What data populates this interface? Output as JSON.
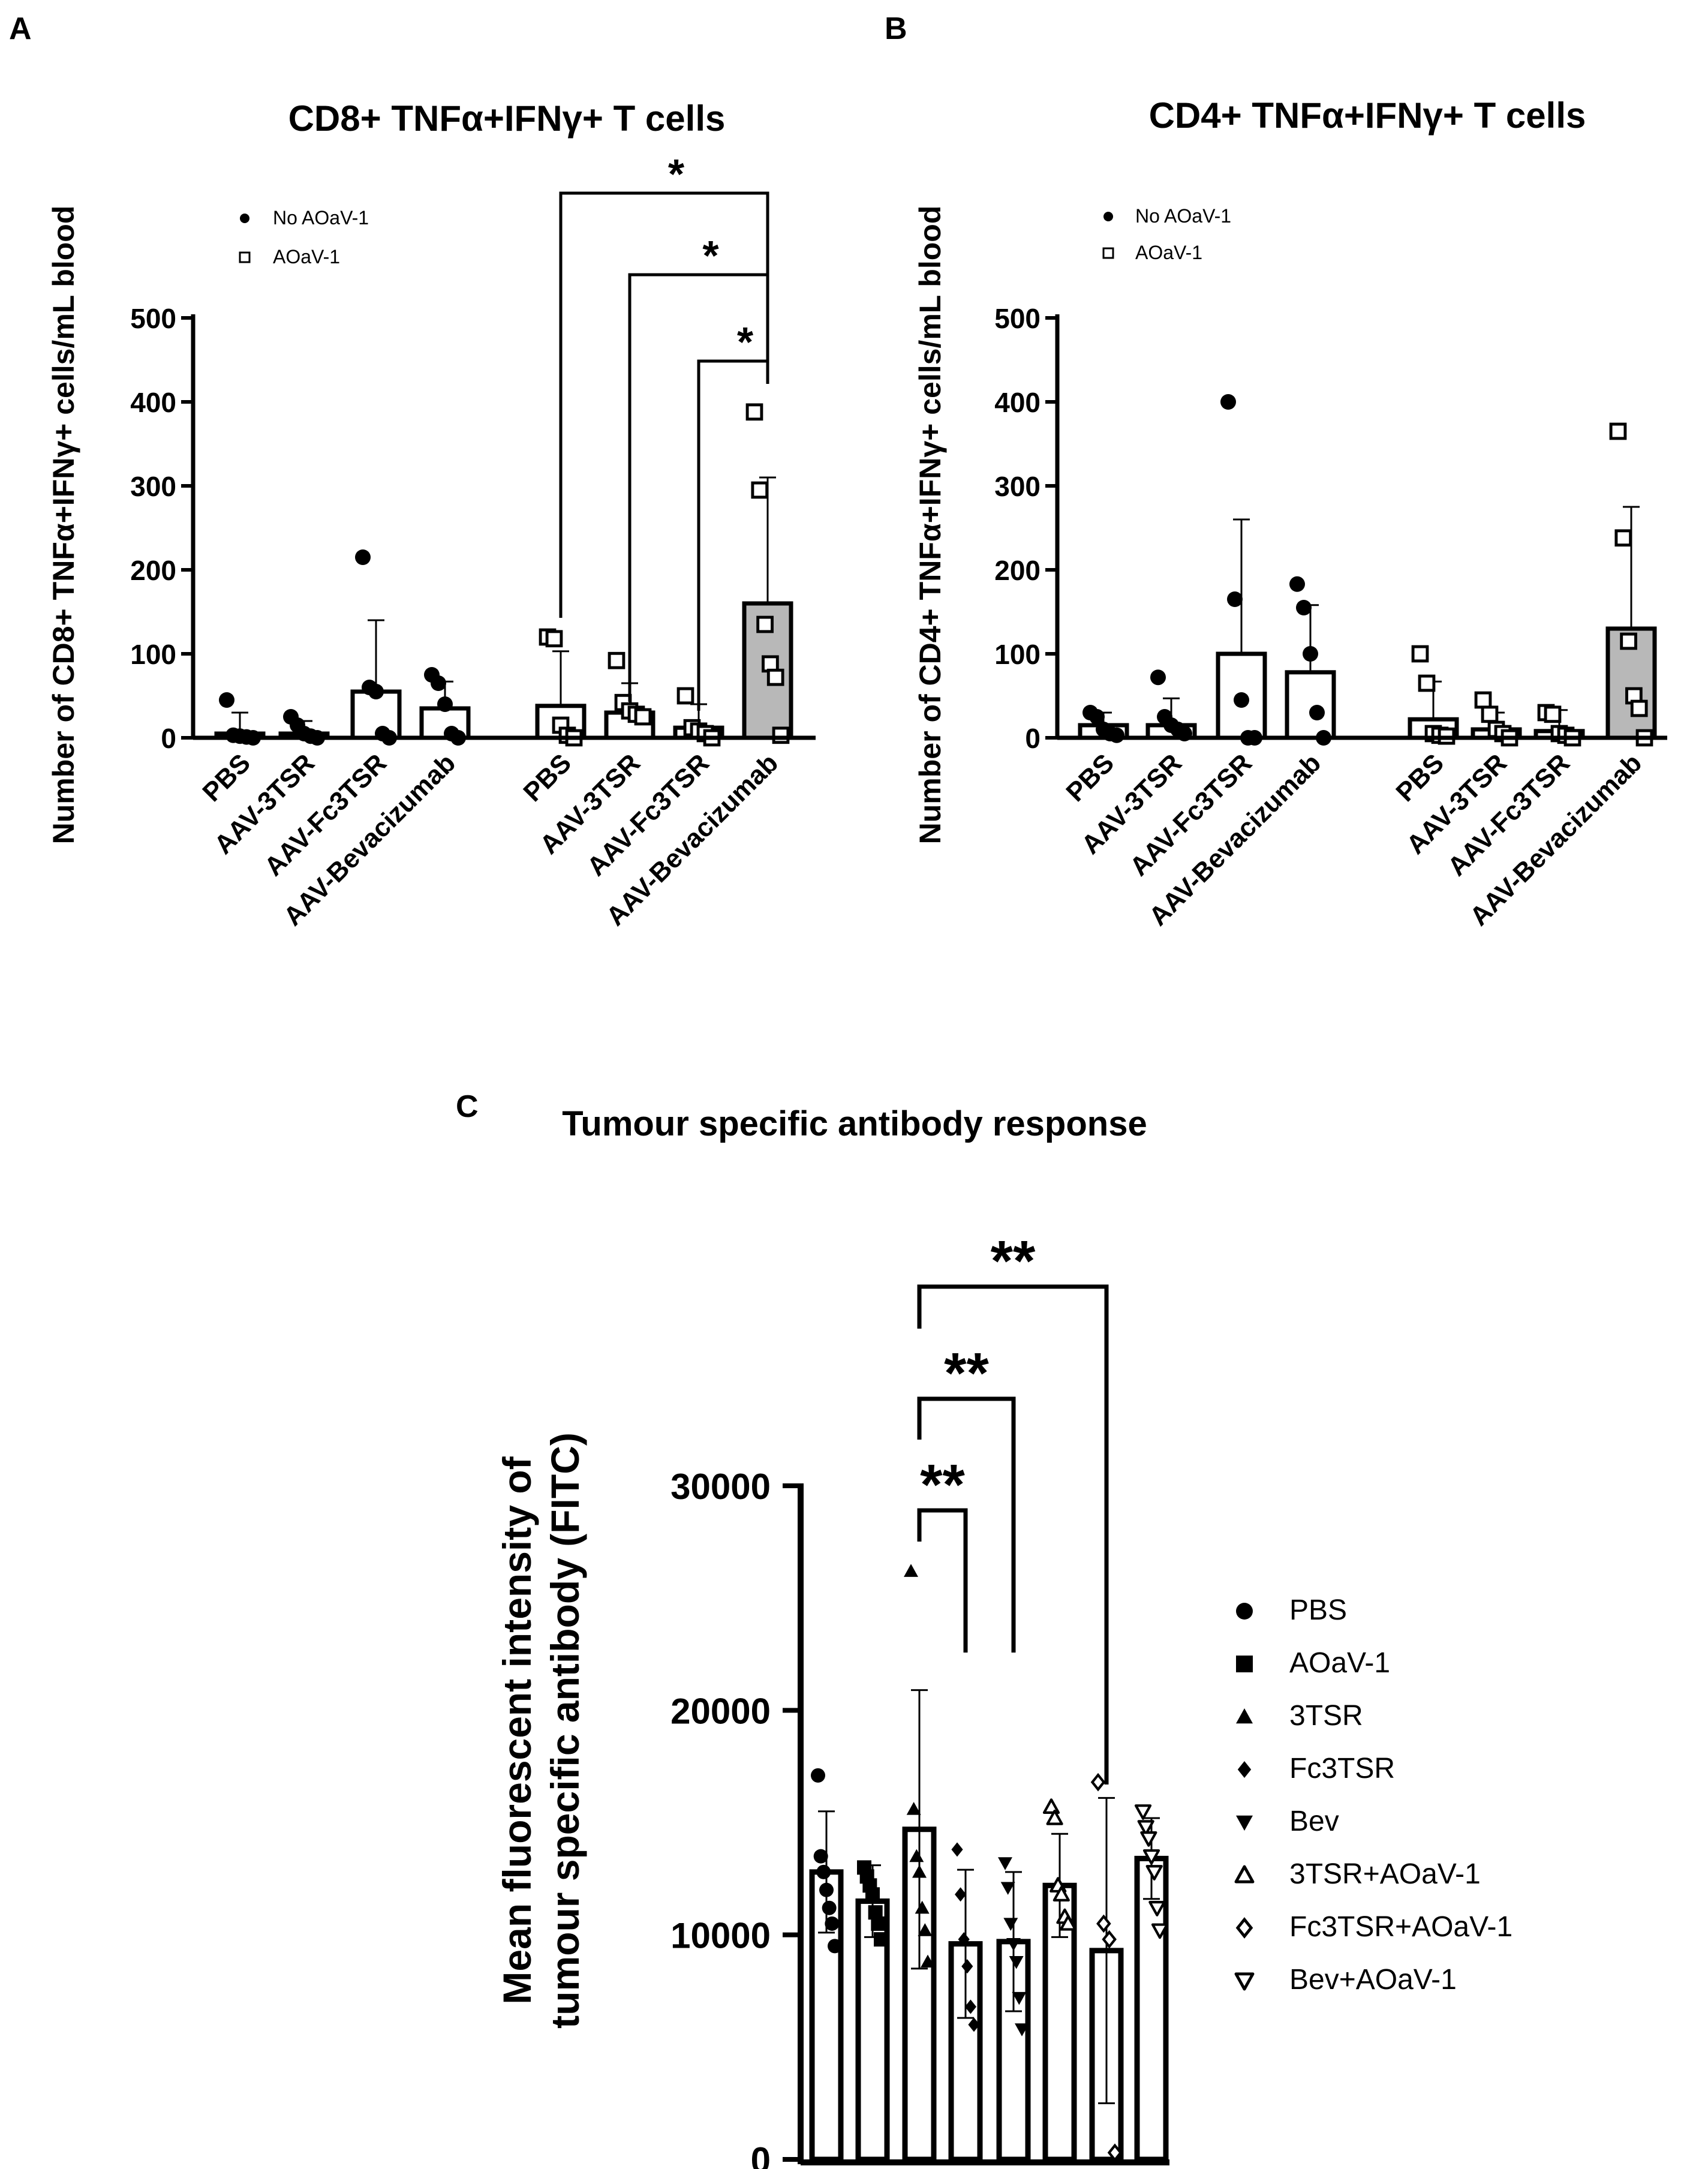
{
  "panels": [
    {
      "label": "A",
      "chart_data": {
        "type": "bar",
        "title": "CD8+ TNFα+IFNγ+ T cells",
        "ylabel": "Number of CD8+ TNFα+IFNγ+  cells/mL blood",
        "ylim": [
          0,
          500
        ],
        "yticks": [
          "0",
          "100",
          "200",
          "300",
          "400",
          "500"
        ],
        "ytick_values": [
          0,
          100,
          200,
          300,
          400,
          500
        ],
        "legend": [
          {
            "label": "No AOaV-1",
            "marker": "filled-circle"
          },
          {
            "label": "AOaV-1",
            "marker": "open-square"
          }
        ],
        "categories": [
          "PBS",
          "AAV-3TSR",
          "AAV-Fc3TSR",
          "AAV-Bevacizumab",
          "PBS",
          "AAV-3TSR",
          "AAV-Fc3TSR",
          "AAV-Bevacizumab"
        ],
        "series": [
          {
            "name": "No AOaV-1",
            "means": [
              5,
              5,
              55,
              35
            ],
            "sd": [
              25,
              15,
              85,
              32
            ],
            "points": [
              [
                45,
                3,
                2,
                1,
                0
              ],
              [
                25,
                15,
                5,
                2,
                0
              ],
              [
                215,
                60,
                55,
                5,
                0
              ],
              [
                75,
                65,
                40,
                5,
                0
              ]
            ]
          },
          {
            "name": "AOaV-1",
            "means": [
              38,
              30,
              12,
              160
            ],
            "sd": [
              65,
              35,
              28,
              150
            ],
            "points": [
              [
                120,
                118,
                15,
                3,
                0
              ],
              [
                92,
                42,
                32,
                28,
                25
              ],
              [
                50,
                12,
                8,
                5,
                0
              ],
              [
                388,
                295,
                135,
                88,
                72,
                3
              ]
            ]
          }
        ],
        "significance": [
          {
            "from": "PBS",
            "to": "AAV-Bevacizumab",
            "label": "*"
          },
          {
            "from": "AAV-3TSR",
            "to": "AAV-Bevacizumab",
            "label": "*"
          },
          {
            "from": "AAV-Fc3TSR",
            "to": "AAV-Bevacizumab",
            "label": "*"
          }
        ]
      }
    },
    {
      "label": "B",
      "chart_data": {
        "type": "bar",
        "title": "CD4+ TNFα+IFNγ+ T cells",
        "ylabel": "Number of CD4+ TNFα+IFNγ+  cells/mL blood",
        "ylim": [
          0,
          500
        ],
        "yticks": [
          "0",
          "100",
          "200",
          "300",
          "400",
          "500"
        ],
        "ytick_values": [
          0,
          100,
          200,
          300,
          400,
          500
        ],
        "legend": [
          {
            "label": "No AOaV-1",
            "marker": "filled-circle"
          },
          {
            "label": "AOaV-1",
            "marker": "open-square"
          }
        ],
        "categories": [
          "PBS",
          "AAV-3TSR",
          "AAV-Fc3TSR",
          "AAV-Bevacizumab",
          "PBS",
          "AAV-3TSR",
          "AAV-Fc3TSR",
          "AAV-Bevacizumab"
        ],
        "series": [
          {
            "name": "No AOaV-1",
            "means": [
              15,
              15,
              100,
              78
            ],
            "sd": [
              15,
              32,
              160,
              80
            ],
            "points": [
              [
                30,
                25,
                10,
                5,
                3
              ],
              [
                72,
                25,
                15,
                10,
                5
              ],
              [
                400,
                165,
                45,
                0,
                0
              ],
              [
                183,
                155,
                100,
                30,
                0
              ]
            ]
          },
          {
            "name": "AOaV-1",
            "means": [
              22,
              10,
              8,
              130
            ],
            "sd": [
              45,
              20,
              25,
              145
            ],
            "points": [
              [
                100,
                65,
                5,
                3,
                2
              ],
              [
                45,
                28,
                10,
                5,
                0
              ],
              [
                30,
                28,
                5,
                3,
                0
              ],
              [
                365,
                238,
                115,
                50,
                35,
                0
              ]
            ]
          }
        ],
        "significance": []
      }
    },
    {
      "label": "C",
      "chart_data": {
        "type": "bar",
        "title": "Tumour specific antibody response",
        "ylabel_lines": [
          "Mean fluorescent intensity of",
          "tumour specific antibody (FITC)"
        ],
        "ylim": [
          0,
          30000
        ],
        "yticks": [
          "0",
          "10000",
          "20000",
          "30000"
        ],
        "ytick_values": [
          0,
          10000,
          20000,
          30000
        ],
        "categories": [
          "PBS",
          "AOaV-1",
          "3TSR",
          "Fc3TSR",
          "Bev",
          "3TSR+AOaV-1",
          "Fc3TSR+AOaV-1",
          "Bev+AOaV-1"
        ],
        "legend": [
          {
            "label": "PBS",
            "marker": "filled-circle"
          },
          {
            "label": "AOaV-1",
            "marker": "filled-square"
          },
          {
            "label": "3TSR",
            "marker": "filled-triangle-up"
          },
          {
            "label": "Fc3TSR",
            "marker": "filled-diamond"
          },
          {
            "label": "Bev",
            "marker": "filled-triangle-down"
          },
          {
            "label": "3TSR+AOaV-1",
            "marker": "open-triangle-up"
          },
          {
            "label": "Fc3TSR+AOaV-1",
            "marker": "open-diamond"
          },
          {
            "label": "Bev+AOaV-1",
            "marker": "open-triangle-down"
          }
        ],
        "means": [
          12800,
          11500,
          14700,
          9600,
          9700,
          12200,
          9300,
          13400
        ],
        "sd": [
          2700,
          1600,
          6200,
          3300,
          3100,
          2300,
          6800,
          1800
        ],
        "points": [
          [
            17100,
            13500,
            12800,
            12000,
            11200,
            10500,
            9500
          ],
          [
            13000,
            12600,
            12200,
            11800,
            11000,
            10500,
            9800
          ],
          [
            26200,
            15600,
            13500,
            12800,
            11200,
            10200,
            8800
          ],
          [
            13800,
            11800,
            9800,
            8600,
            6800,
            6000
          ],
          [
            13200,
            12100,
            10500,
            9600,
            8800,
            7200,
            5800
          ],
          [
            15700,
            15200,
            12200,
            11800,
            10800,
            10500
          ],
          [
            16800,
            10500,
            9800,
            300
          ],
          [
            15500,
            14800,
            14300,
            13500,
            12800,
            11200,
            10200
          ]
        ],
        "significance": [
          {
            "from": "3TSR",
            "to": "Fc3TSR",
            "label": "**"
          },
          {
            "from": "3TSR",
            "to": "Bev",
            "label": "**"
          },
          {
            "from": "3TSR",
            "to": "Fc3TSR+AOaV-1",
            "label": "**"
          }
        ]
      }
    }
  ]
}
